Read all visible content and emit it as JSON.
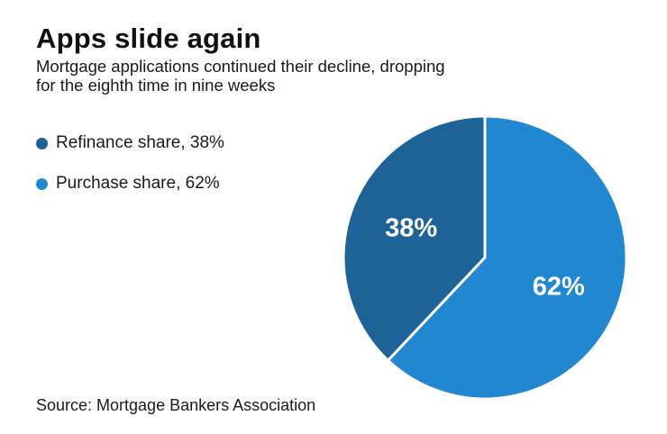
{
  "header": {
    "title": "Apps slide again",
    "subtitle_lines": [
      "Mortgage applications continued their decline, dropping",
      "for the eighth time in nine weeks"
    ]
  },
  "legend": {
    "items": [
      {
        "label": "Refinance share, 38%"
      },
      {
        "label": "Purchase share, 62%"
      }
    ]
  },
  "chart_data": {
    "type": "pie",
    "title": "Apps slide again",
    "subtitle": "Mortgage applications continued their decline, dropping for the eighth time in nine weeks",
    "slices": [
      {
        "label": "Refinance share",
        "value": 38,
        "display": "38%",
        "color": "#1d6398"
      },
      {
        "label": "Purchase share",
        "value": 62,
        "display": "62%",
        "color": "#2187d1"
      }
    ],
    "start_angle": "top",
    "direction": "counterclockwise",
    "legend_position": "left",
    "slice_label_color": "#ffffff",
    "divider_color": "#ffffff"
  },
  "source": {
    "text": "Source: Mortgage Bankers Association"
  }
}
